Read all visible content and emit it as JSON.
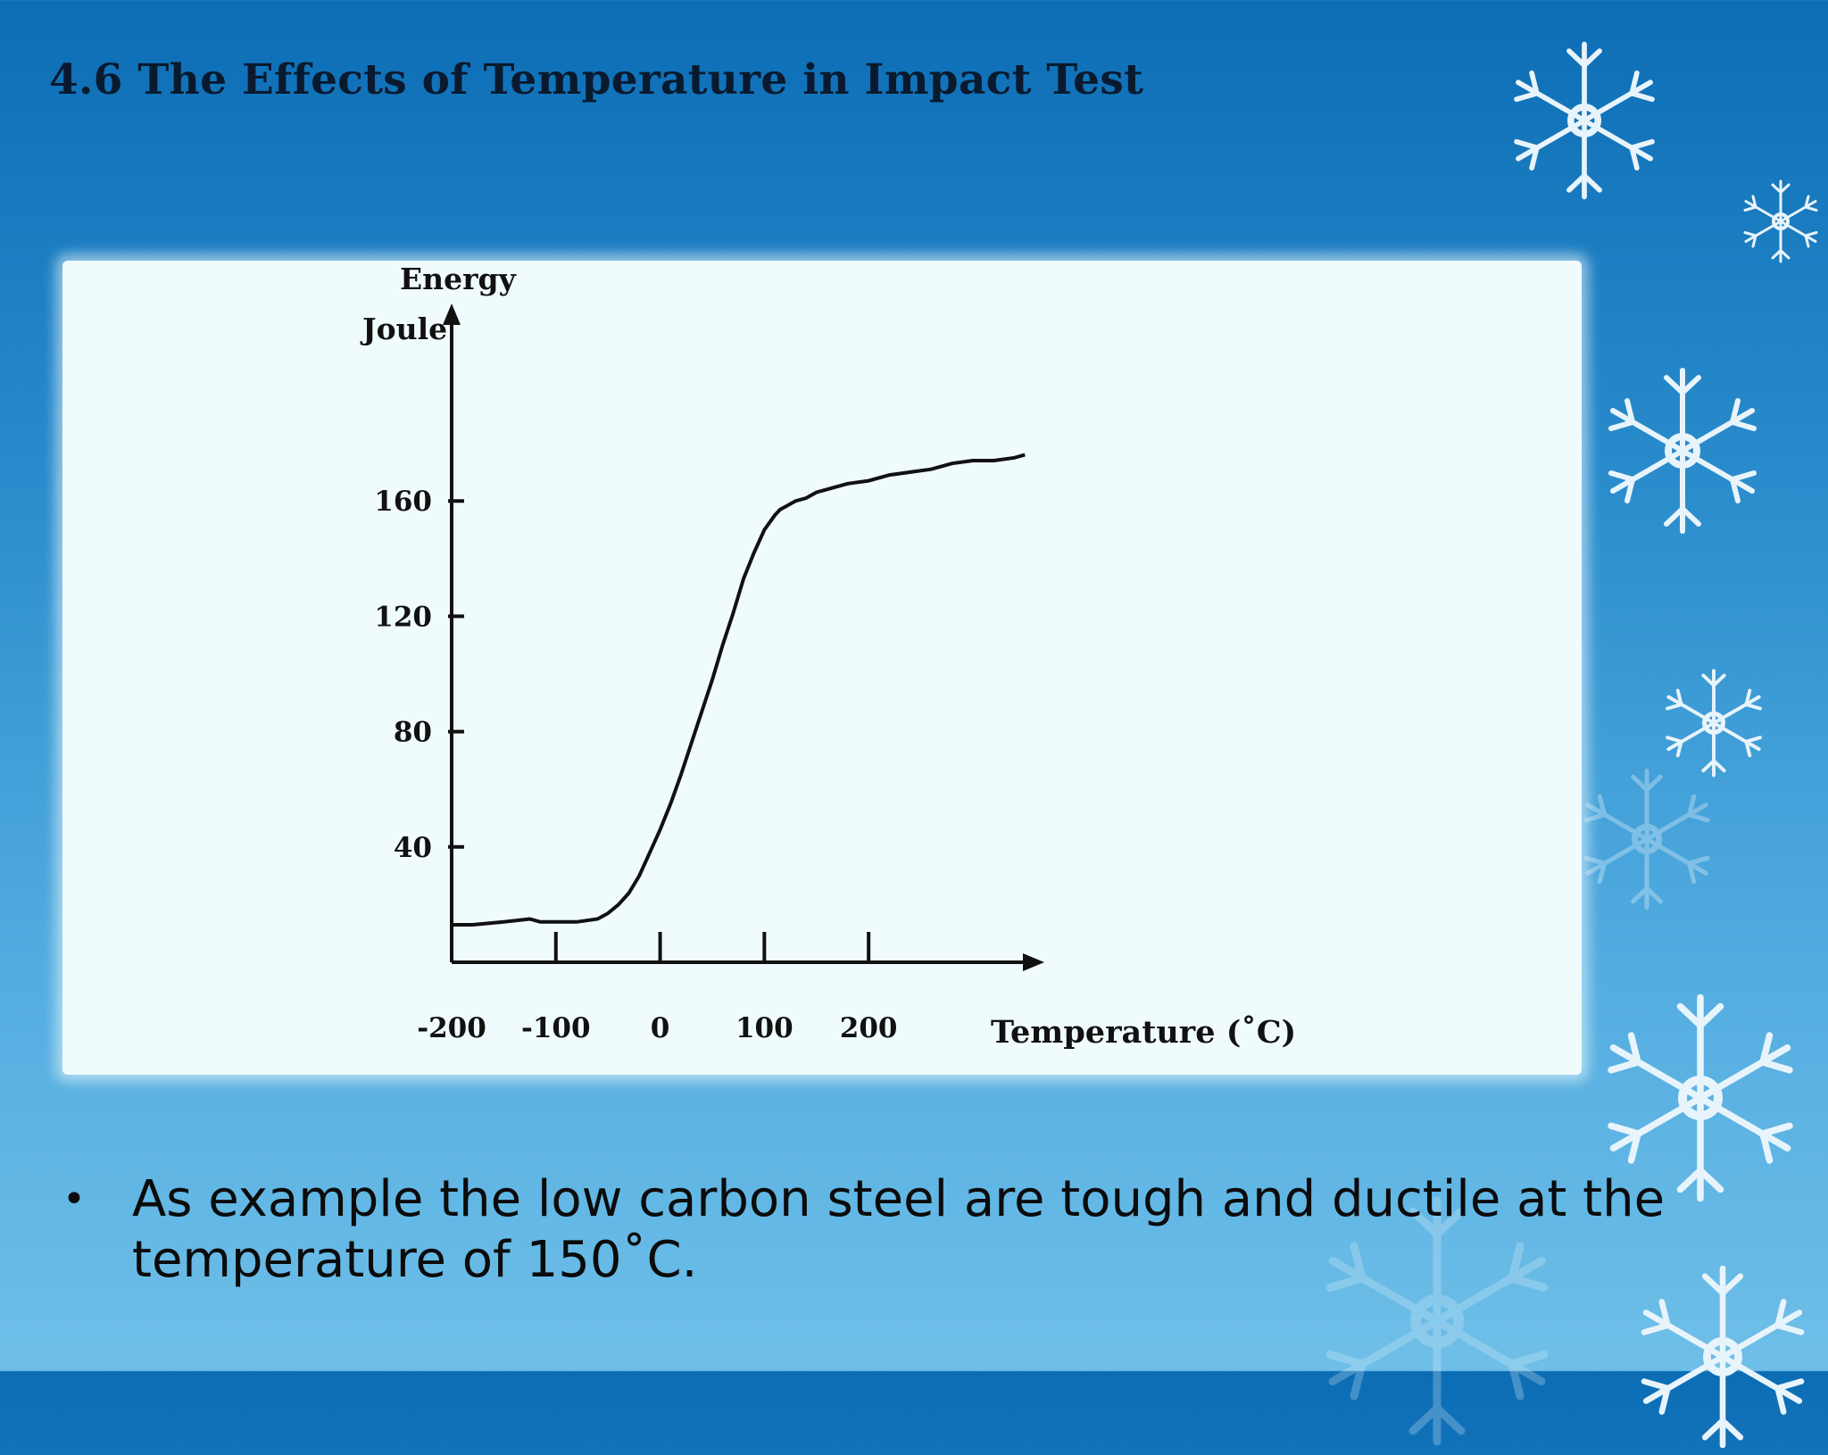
{
  "slide": {
    "title": "4.6 The Effects of Temperature in Impact Test",
    "bullet_symbol": "•",
    "bullet_text": "As example the low carbon steel are tough and ductile at the temperature of 150˚C."
  },
  "chart_data": {
    "type": "line",
    "ylabel_line1": "Energy",
    "ylabel_line2": "Joule",
    "xlabel": "Temperature  (˚C)",
    "x_ticks": [
      -200,
      -100,
      0,
      100,
      200
    ],
    "x_tick_labels": [
      "-200",
      "-100",
      "0",
      "100",
      "200"
    ],
    "y_ticks": [
      40,
      80,
      120,
      160
    ],
    "y_tick_labels": [
      "40",
      "80",
      "120",
      "160"
    ],
    "xlim": [
      -200,
      360
    ],
    "ylim": [
      0,
      200
    ],
    "grid": false,
    "legend": "none",
    "line_color": "#111111",
    "series": [
      {
        "x": [
          -200,
          -180,
          -150,
          -125,
          -115,
          -100,
          -80,
          -60,
          -50,
          -40,
          -30,
          -20,
          -10,
          0,
          10,
          20,
          30,
          40,
          50,
          60,
          70,
          80,
          90,
          100,
          110,
          115,
          120,
          130,
          140,
          150,
          160,
          170,
          180,
          200,
          220,
          240,
          260,
          280,
          300,
          320,
          340,
          350
        ],
        "y": [
          13,
          13,
          14,
          15,
          14,
          14,
          14,
          15,
          17,
          20,
          24,
          30,
          38,
          46,
          55,
          65,
          76,
          87,
          98,
          110,
          121,
          133,
          142,
          150,
          155,
          157,
          158,
          160,
          161,
          163,
          164,
          165,
          166,
          167,
          169,
          170,
          171,
          173,
          174,
          174,
          175,
          176
        ]
      }
    ]
  }
}
